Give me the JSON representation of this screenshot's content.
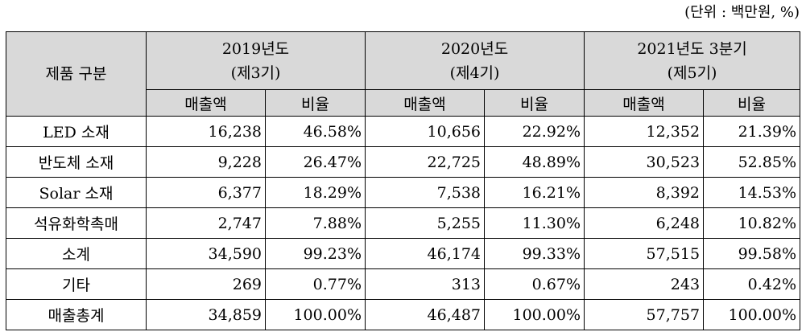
{
  "unit_note": "(단위 : 백만원, %)",
  "header": {
    "product_label": "제품 구분",
    "years": [
      {
        "year": "2019년도",
        "period": "(제3기)"
      },
      {
        "year": "2020년도",
        "period": "(제4기)"
      },
      {
        "year": "2021년도 3분기",
        "period": "(제5기)"
      }
    ],
    "sales_label": "매출액",
    "ratio_label": "비율"
  },
  "rows": [
    {
      "label": "LED 소재",
      "v": [
        "16,238",
        "46.58%",
        "10,656",
        "22.92%",
        "12,352",
        "21.39%"
      ]
    },
    {
      "label": "반도체 소재",
      "v": [
        "9,228",
        "26.47%",
        "22,725",
        "48.89%",
        "30,523",
        "52.85%"
      ]
    },
    {
      "label": "Solar 소재",
      "v": [
        "6,377",
        "18.29%",
        "7,538",
        "16.21%",
        "8,392",
        "14.53%"
      ]
    },
    {
      "label": "석유화학촉매",
      "v": [
        "2,747",
        "7.88%",
        "5,255",
        "11.30%",
        "6,248",
        "10.82%"
      ]
    },
    {
      "label": "소계",
      "v": [
        "34,590",
        "99.23%",
        "46,174",
        "99.33%",
        "57,515",
        "99.58%"
      ]
    },
    {
      "label": "기타",
      "v": [
        "269",
        "0.77%",
        "313",
        "0.67%",
        "243",
        "0.42%"
      ]
    },
    {
      "label": "매출총계",
      "v": [
        "34,859",
        "100.00%",
        "46,487",
        "100.00%",
        "57,757",
        "100.00%"
      ]
    }
  ]
}
